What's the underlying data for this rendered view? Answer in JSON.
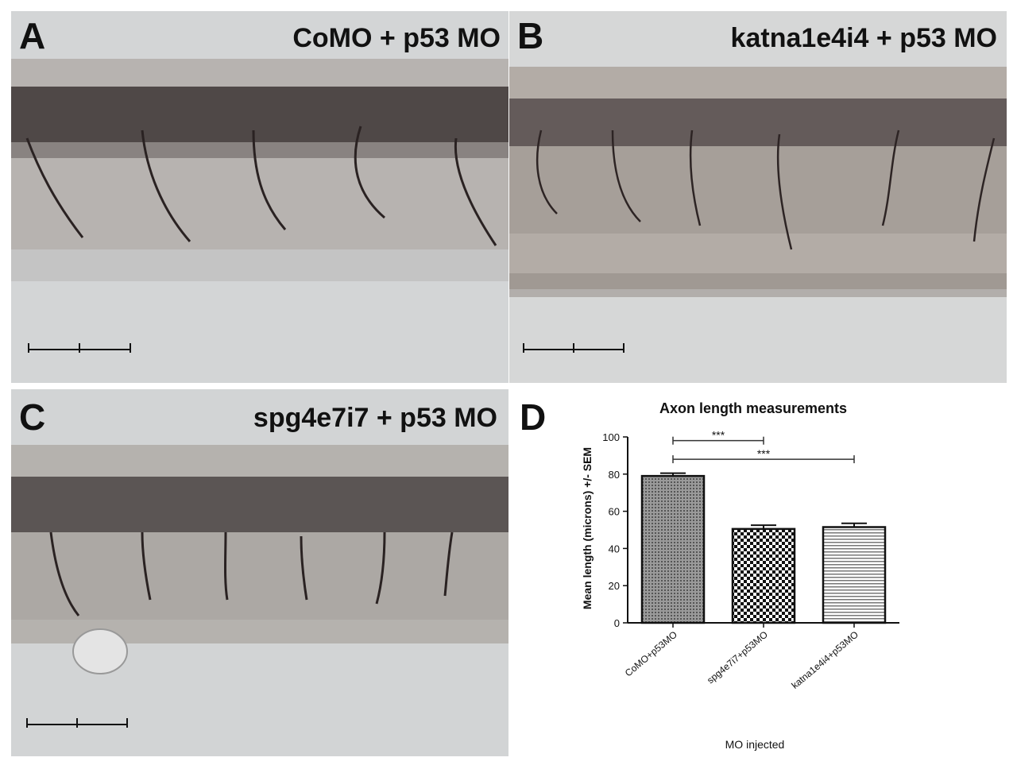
{
  "panels": [
    {
      "label": "A",
      "title": "CoMO + p53 MO"
    },
    {
      "label": "B",
      "title": "katna1e4i4 + p53 MO"
    },
    {
      "label": "C",
      "title": "spg4e7i7 + p53 MO"
    },
    {
      "label": "D"
    }
  ],
  "chart_data": {
    "type": "bar",
    "title": "Axon length measurements",
    "xlabel": "MO injected",
    "ylabel": "Mean length (microns) +/- SEM",
    "ylim": [
      0,
      100
    ],
    "yticks": [
      "0",
      "20",
      "40",
      "60",
      "80",
      "100"
    ],
    "categories": [
      "CoMO+p53MO",
      "spg4e7i7+p53MO",
      "katna1e4i4+p53MO"
    ],
    "values": [
      79,
      50.5,
      51.5
    ],
    "errors": [
      1.5,
      2,
      2
    ],
    "patterns": [
      "dots",
      "checker",
      "horizontal-lines"
    ],
    "significance": [
      {
        "from": 0,
        "to": 1,
        "label": "***"
      },
      {
        "from": 0,
        "to": 2,
        "label": "***"
      }
    ]
  }
}
